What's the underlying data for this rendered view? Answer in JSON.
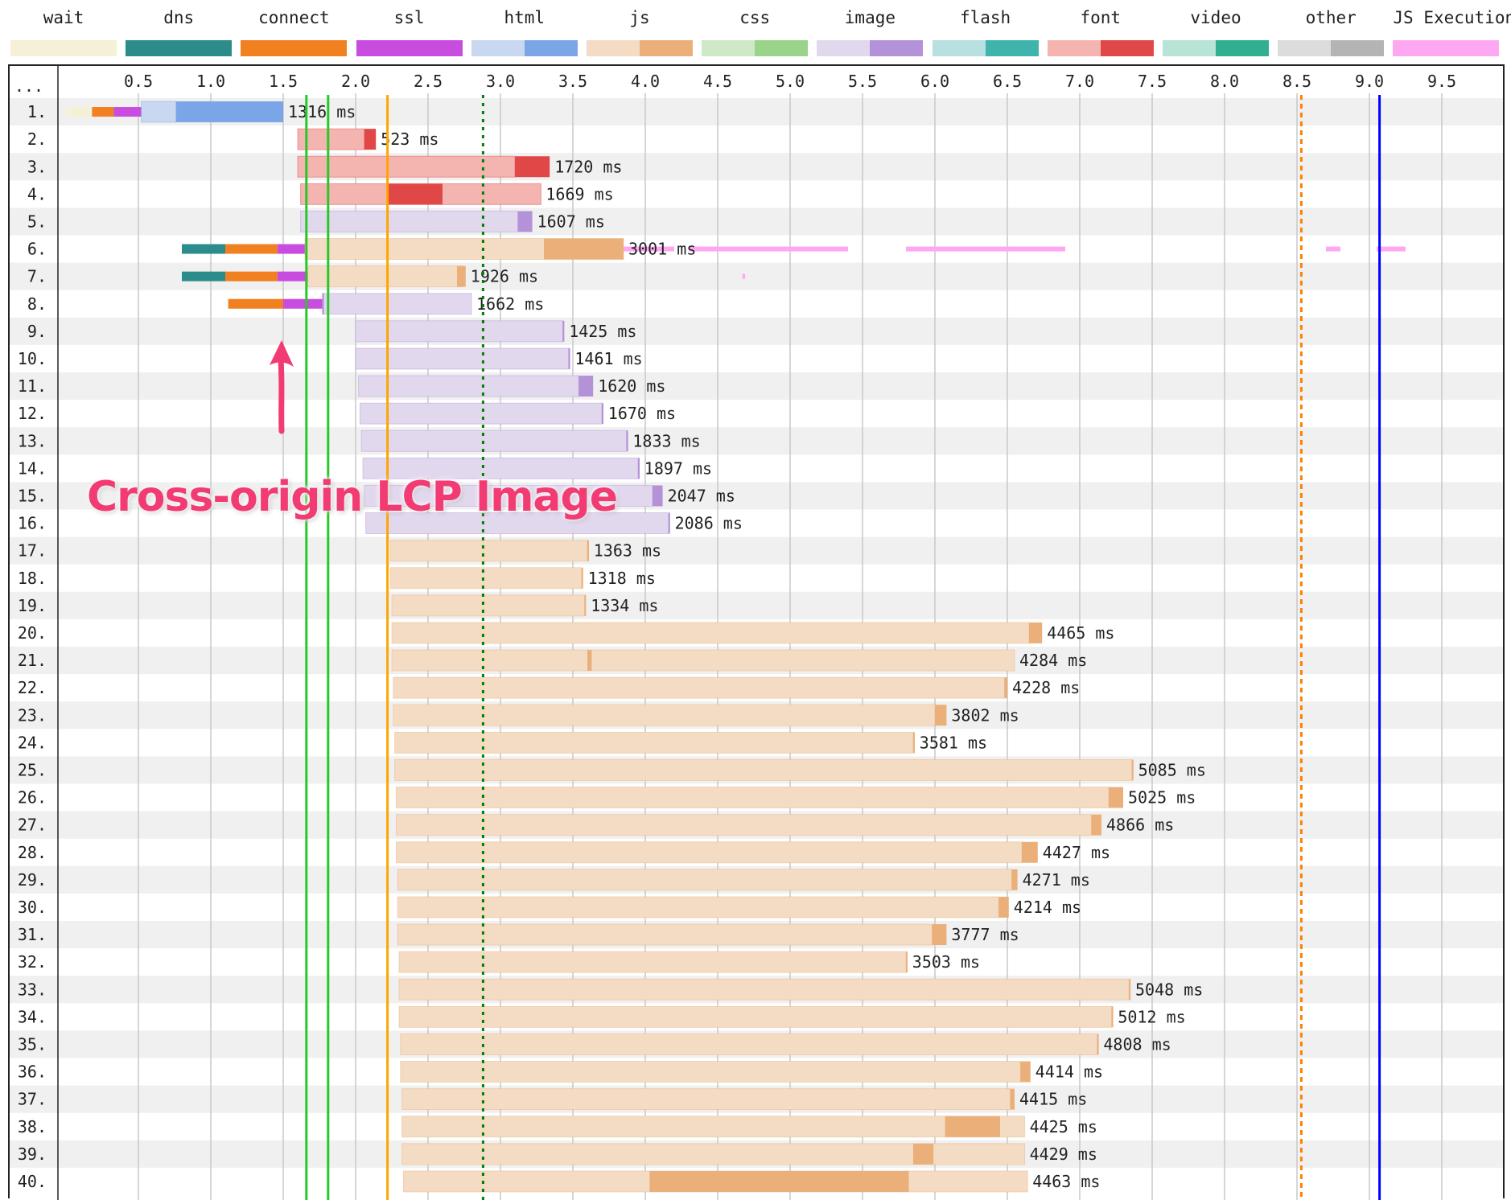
{
  "legend": [
    {
      "label": "wait",
      "colors": [
        "#f5f0d8",
        "#f5f0d8"
      ]
    },
    {
      "label": "dns",
      "colors": [
        "#2c8c8c",
        "#2c8c8c"
      ]
    },
    {
      "label": "connect",
      "colors": [
        "#f08020",
        "#f08020"
      ]
    },
    {
      "label": "ssl",
      "colors": [
        "#c84ce0",
        "#c84ce0"
      ]
    },
    {
      "label": "html",
      "colors": [
        "#c8d8f0",
        "#7aa6e8"
      ]
    },
    {
      "label": "js",
      "colors": [
        "#f4dcc4",
        "#ebb07a"
      ]
    },
    {
      "label": "css",
      "colors": [
        "#cfe8c8",
        "#9ad48a"
      ]
    },
    {
      "label": "image",
      "colors": [
        "#e2d8ee",
        "#b492d8"
      ]
    },
    {
      "label": "flash",
      "colors": [
        "#b8e0e0",
        "#3fb4ac"
      ]
    },
    {
      "label": "font",
      "colors": [
        "#f4b4b0",
        "#e04848"
      ]
    },
    {
      "label": "video",
      "colors": [
        "#b8e4d8",
        "#30b090"
      ]
    },
    {
      "label": "other",
      "colors": [
        "#dcdcdc",
        "#b4b4b4"
      ]
    },
    {
      "label": "JS Execution",
      "colors": [
        "#ffa8f2",
        "#ffa8f2"
      ]
    }
  ],
  "annotation": {
    "text": "Cross-origin LCP Image",
    "color": "#f23a73"
  },
  "chart_data": {
    "type": "waterfall",
    "x_unit": "seconds",
    "xlim": [
      0,
      10
    ],
    "ticks": [
      0.5,
      1.0,
      1.5,
      2.0,
      2.5,
      3.0,
      3.5,
      4.0,
      4.5,
      5.0,
      5.5,
      6.0,
      6.5,
      7.0,
      7.5,
      8.0,
      8.5,
      9.0,
      9.5
    ],
    "header_label": "...",
    "marker_lines": [
      {
        "x": 1.66,
        "color": "#28c828",
        "style": "solid"
      },
      {
        "x": 1.81,
        "color": "#28c828",
        "style": "solid"
      },
      {
        "x": 2.22,
        "color": "#ffa500",
        "style": "solid"
      },
      {
        "x": 2.88,
        "color": "#008000",
        "style": "dotted"
      },
      {
        "x": 8.53,
        "color": "#ff8000",
        "style": "dashed"
      },
      {
        "x": 9.07,
        "color": "#0000ff",
        "style": "solid"
      }
    ],
    "requests": [
      {
        "label": "1.",
        "type": "html",
        "wait": [
          0.0,
          0.18
        ],
        "connect": [
          0.18,
          0.33
        ],
        "ssl": [
          0.33,
          0.52
        ],
        "ttfb": [
          0.52,
          0.76
        ],
        "download": [
          0.76,
          1.5
        ],
        "duration": "1316 ms"
      },
      {
        "label": "2.",
        "type": "font",
        "ttfb": [
          1.6,
          2.06
        ],
        "download": [
          2.06,
          2.14
        ],
        "duration": "523 ms"
      },
      {
        "label": "3.",
        "type": "font",
        "ttfb": [
          1.6,
          3.1
        ],
        "download": [
          3.1,
          3.34
        ],
        "duration": "1720 ms"
      },
      {
        "label": "4.",
        "type": "font",
        "ttfb": [
          1.62,
          3.28
        ],
        "download": [
          2.22,
          2.6
        ],
        "duration": "1669 ms"
      },
      {
        "label": "5.",
        "type": "image",
        "ttfb": [
          1.62,
          3.12
        ],
        "download": [
          3.12,
          3.22
        ],
        "duration": "1607 ms"
      },
      {
        "label": "6.",
        "type": "js",
        "dns": [
          0.8,
          1.1
        ],
        "connect": [
          1.1,
          1.46
        ],
        "ssl": [
          1.46,
          1.65
        ],
        "ttfb": [
          1.65,
          3.85
        ],
        "download": [
          3.3,
          3.85
        ],
        "duration": "3001 ms",
        "js_exec": [
          [
            3.85,
            4.2
          ],
          [
            4.3,
            5.4
          ],
          [
            5.8,
            6.9
          ],
          [
            8.7,
            8.8
          ],
          [
            9.05,
            9.25
          ]
        ]
      },
      {
        "label": "7.",
        "type": "js",
        "dns": [
          0.8,
          1.1
        ],
        "connect": [
          1.1,
          1.46
        ],
        "ssl": [
          1.46,
          1.67
        ],
        "ttfb": [
          1.67,
          2.74
        ],
        "download": [
          2.7,
          2.76
        ],
        "duration": "1926 ms",
        "js_exec": [
          [
            4.67,
            4.69
          ]
        ]
      },
      {
        "label": "8.",
        "type": "image",
        "connect": [
          1.12,
          1.5
        ],
        "ssl": [
          1.5,
          1.77
        ],
        "ttfb": [
          1.77,
          2.8
        ],
        "download": [
          1.77,
          1.78
        ],
        "duration": "1662 ms"
      },
      {
        "label": "9.",
        "type": "image",
        "ttfb": [
          2.0,
          3.43
        ],
        "download": [
          3.43,
          3.44
        ],
        "duration": "1425 ms"
      },
      {
        "label": "10.",
        "type": "image",
        "ttfb": [
          2.0,
          3.47
        ],
        "download": [
          3.47,
          3.48
        ],
        "duration": "1461 ms"
      },
      {
        "label": "11.",
        "type": "image",
        "ttfb": [
          2.02,
          3.54
        ],
        "download": [
          3.54,
          3.64
        ],
        "duration": "1620 ms"
      },
      {
        "label": "12.",
        "type": "image",
        "ttfb": [
          2.03,
          3.7
        ],
        "download": [
          3.7,
          3.71
        ],
        "duration": "1670 ms"
      },
      {
        "label": "13.",
        "type": "image",
        "ttfb": [
          2.04,
          3.87
        ],
        "download": [
          3.87,
          3.88
        ],
        "duration": "1833 ms"
      },
      {
        "label": "14.",
        "type": "image",
        "ttfb": [
          2.05,
          3.95
        ],
        "download": [
          3.95,
          3.96
        ],
        "duration": "1897 ms"
      },
      {
        "label": "15.",
        "type": "image",
        "ttfb": [
          2.06,
          4.05
        ],
        "download": [
          4.05,
          4.12
        ],
        "duration": "2047 ms"
      },
      {
        "label": "16.",
        "type": "image",
        "ttfb": [
          2.07,
          4.16
        ],
        "download": [
          4.16,
          4.17
        ],
        "duration": "2086 ms"
      },
      {
        "label": "17.",
        "type": "js",
        "ttfb": [
          2.24,
          3.6
        ],
        "download": [
          3.6,
          3.61
        ],
        "duration": "1363 ms"
      },
      {
        "label": "18.",
        "type": "js",
        "ttfb": [
          2.24,
          3.56
        ],
        "download": [
          3.56,
          3.57
        ],
        "duration": "1318 ms"
      },
      {
        "label": "19.",
        "type": "js",
        "ttfb": [
          2.25,
          3.58
        ],
        "download": [
          3.58,
          3.59
        ],
        "duration": "1334 ms"
      },
      {
        "label": "20.",
        "type": "js",
        "ttfb": [
          2.25,
          6.65
        ],
        "download": [
          6.65,
          6.74
        ],
        "duration": "4465 ms"
      },
      {
        "label": "21.",
        "type": "js",
        "ttfb": [
          2.25,
          6.55
        ],
        "download": [
          3.6,
          3.63
        ],
        "duration": "4284 ms"
      },
      {
        "label": "22.",
        "type": "js",
        "ttfb": [
          2.26,
          6.48
        ],
        "download": [
          6.48,
          6.5
        ],
        "duration": "4228 ms"
      },
      {
        "label": "23.",
        "type": "js",
        "ttfb": [
          2.26,
          6.0
        ],
        "download": [
          6.0,
          6.08
        ],
        "duration": "3802 ms"
      },
      {
        "label": "24.",
        "type": "js",
        "ttfb": [
          2.27,
          5.85
        ],
        "download": [
          5.85,
          5.86
        ],
        "duration": "3581 ms"
      },
      {
        "label": "25.",
        "type": "js",
        "ttfb": [
          2.27,
          7.36
        ],
        "download": [
          7.36,
          7.37
        ],
        "duration": "5085 ms"
      },
      {
        "label": "26.",
        "type": "js",
        "ttfb": [
          2.28,
          7.2
        ],
        "download": [
          7.2,
          7.3
        ],
        "duration": "5025 ms"
      },
      {
        "label": "27.",
        "type": "js",
        "ttfb": [
          2.28,
          7.08
        ],
        "download": [
          7.08,
          7.15
        ],
        "duration": "4866 ms"
      },
      {
        "label": "28.",
        "type": "js",
        "ttfb": [
          2.28,
          6.6
        ],
        "download": [
          6.6,
          6.71
        ],
        "duration": "4427 ms"
      },
      {
        "label": "29.",
        "type": "js",
        "ttfb": [
          2.29,
          6.53
        ],
        "download": [
          6.53,
          6.57
        ],
        "duration": "4271 ms"
      },
      {
        "label": "30.",
        "type": "js",
        "ttfb": [
          2.29,
          6.44
        ],
        "download": [
          6.44,
          6.51
        ],
        "duration": "4214 ms"
      },
      {
        "label": "31.",
        "type": "js",
        "ttfb": [
          2.29,
          5.98
        ],
        "download": [
          5.98,
          6.08
        ],
        "duration": "3777 ms"
      },
      {
        "label": "32.",
        "type": "js",
        "ttfb": [
          2.3,
          5.8
        ],
        "download": [
          5.8,
          5.81
        ],
        "duration": "3503 ms"
      },
      {
        "label": "33.",
        "type": "js",
        "ttfb": [
          2.3,
          7.34
        ],
        "download": [
          7.34,
          7.35
        ],
        "duration": "5048 ms"
      },
      {
        "label": "34.",
        "type": "js",
        "ttfb": [
          2.3,
          7.22
        ],
        "download": [
          7.22,
          7.23
        ],
        "duration": "5012 ms"
      },
      {
        "label": "35.",
        "type": "js",
        "ttfb": [
          2.31,
          7.12
        ],
        "download": [
          7.12,
          7.13
        ],
        "duration": "4808 ms"
      },
      {
        "label": "36.",
        "type": "js",
        "ttfb": [
          2.31,
          6.59
        ],
        "download": [
          6.59,
          6.66
        ],
        "duration": "4414 ms"
      },
      {
        "label": "37.",
        "type": "js",
        "ttfb": [
          2.32,
          6.52
        ],
        "download": [
          6.52,
          6.55
        ],
        "duration": "4415 ms"
      },
      {
        "label": "38.",
        "type": "js",
        "ttfb": [
          2.32,
          6.62
        ],
        "download": [
          6.07,
          6.45
        ],
        "duration": "4425 ms"
      },
      {
        "label": "39.",
        "type": "js",
        "ttfb": [
          2.32,
          6.62
        ],
        "download": [
          5.85,
          5.99
        ],
        "duration": "4429 ms"
      },
      {
        "label": "40.",
        "type": "js",
        "ttfb": [
          2.33,
          6.64
        ],
        "download": [
          4.03,
          5.82
        ],
        "duration": "4463 ms"
      }
    ]
  }
}
